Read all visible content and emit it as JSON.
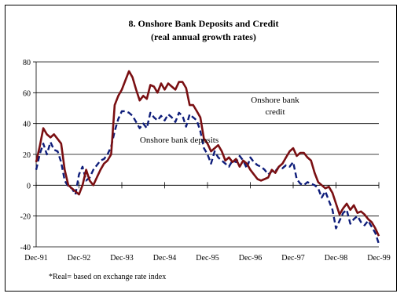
{
  "chart_data": {
    "type": "line",
    "title": "8.  Onshore Bank Deposits and Credit",
    "subtitle": "(real annual growth rates)",
    "footnote": "*Real= based on exchange rate index",
    "xlabel": "",
    "ylabel": "",
    "ylim": [
      -40,
      80
    ],
    "yticks": [
      -40,
      -20,
      0,
      20,
      40,
      60,
      80
    ],
    "xlim": [
      "1991-12",
      "1999-12"
    ],
    "xticks": [
      "Dec-91",
      "Dec-92",
      "Dec-93",
      "Dec-94",
      "Dec-95",
      "Dec-96",
      "Dec-97",
      "Dec-98",
      "Dec-99"
    ],
    "grid": "horizontal",
    "legend": "none",
    "annotations": [
      {
        "series": "credit",
        "lines": [
          "Onshore bank",
          "credit"
        ]
      },
      {
        "series": "deposits",
        "lines": [
          "Onshore bank deposits"
        ]
      }
    ],
    "series": [
      {
        "key": "credit",
        "color": "#7a0f12",
        "style": "solid",
        "points": [
          [
            "1991-12",
            15
          ],
          [
            "1992-01",
            25
          ],
          [
            "1992-02",
            37
          ],
          [
            "1992-03",
            33
          ],
          [
            "1992-04",
            31
          ],
          [
            "1992-05",
            33
          ],
          [
            "1992-06",
            30
          ],
          [
            "1992-07",
            27
          ],
          [
            "1992-08",
            10
          ],
          [
            "1992-09",
            0
          ],
          [
            "1992-10",
            -2
          ],
          [
            "1992-11",
            -4
          ],
          [
            "1992-12",
            -6
          ],
          [
            "1993-01",
            0
          ],
          [
            "1993-02",
            10
          ],
          [
            "1993-03",
            3
          ],
          [
            "1993-04",
            0
          ],
          [
            "1993-05",
            5
          ],
          [
            "1993-06",
            10
          ],
          [
            "1993-07",
            14
          ],
          [
            "1993-08",
            16
          ],
          [
            "1993-09",
            20
          ],
          [
            "1993-10",
            52
          ],
          [
            "1993-11",
            58
          ],
          [
            "1993-12",
            62
          ],
          [
            "1994-01",
            68
          ],
          [
            "1994-02",
            74
          ],
          [
            "1994-03",
            70
          ],
          [
            "1994-04",
            62
          ],
          [
            "1994-05",
            55
          ],
          [
            "1994-06",
            58
          ],
          [
            "1994-07",
            56
          ],
          [
            "1994-08",
            65
          ],
          [
            "1994-09",
            64
          ],
          [
            "1994-10",
            60
          ],
          [
            "1994-11",
            66
          ],
          [
            "1994-12",
            62
          ],
          [
            "1995-01",
            66
          ],
          [
            "1995-02",
            64
          ],
          [
            "1995-03",
            62
          ],
          [
            "1995-04",
            67
          ],
          [
            "1995-05",
            67
          ],
          [
            "1995-06",
            63
          ],
          [
            "1995-07",
            52
          ],
          [
            "1995-08",
            52
          ],
          [
            "1995-09",
            48
          ],
          [
            "1995-10",
            44
          ],
          [
            "1995-11",
            30
          ],
          [
            "1995-12",
            27
          ],
          [
            "1996-01",
            22
          ],
          [
            "1996-02",
            24
          ],
          [
            "1996-03",
            26
          ],
          [
            "1996-04",
            22
          ],
          [
            "1996-05",
            16
          ],
          [
            "1996-06",
            18
          ],
          [
            "1996-07",
            15
          ],
          [
            "1996-08",
            17
          ],
          [
            "1996-09",
            12
          ],
          [
            "1996-10",
            16
          ],
          [
            "1996-11",
            14
          ],
          [
            "1996-12",
            10
          ],
          [
            "1997-01",
            7
          ],
          [
            "1997-02",
            4
          ],
          [
            "1997-03",
            3
          ],
          [
            "1997-04",
            4
          ],
          [
            "1997-05",
            5
          ],
          [
            "1997-06",
            10
          ],
          [
            "1997-07",
            8
          ],
          [
            "1997-08",
            12
          ],
          [
            "1997-09",
            14
          ],
          [
            "1997-10",
            18
          ],
          [
            "1997-11",
            22
          ],
          [
            "1997-12",
            24
          ],
          [
            "1998-01",
            19
          ],
          [
            "1998-02",
            21
          ],
          [
            "1998-03",
            21
          ],
          [
            "1998-04",
            18
          ],
          [
            "1998-05",
            16
          ],
          [
            "1998-06",
            8
          ],
          [
            "1998-07",
            2
          ],
          [
            "1998-08",
            0
          ],
          [
            "1998-09",
            -2
          ],
          [
            "1998-10",
            -1
          ],
          [
            "1998-11",
            -5
          ],
          [
            "1998-12",
            -12
          ],
          [
            "1999-01",
            -19
          ],
          [
            "1999-02",
            -15
          ],
          [
            "1999-03",
            -12
          ],
          [
            "1999-04",
            -16
          ],
          [
            "1999-05",
            -13
          ],
          [
            "1999-06",
            -18
          ],
          [
            "1999-07",
            -17
          ],
          [
            "1999-08",
            -19
          ],
          [
            "1999-09",
            -22
          ],
          [
            "1999-10",
            -24
          ],
          [
            "1999-11",
            -28
          ],
          [
            "1999-12",
            -33
          ]
        ]
      },
      {
        "key": "deposits",
        "color": "#0e1d7a",
        "style": "dashed",
        "points": [
          [
            "1991-12",
            10
          ],
          [
            "1992-01",
            20
          ],
          [
            "1992-02",
            27
          ],
          [
            "1992-03",
            20
          ],
          [
            "1992-04",
            28
          ],
          [
            "1992-05",
            23
          ],
          [
            "1992-06",
            22
          ],
          [
            "1992-07",
            15
          ],
          [
            "1992-08",
            3
          ],
          [
            "1992-09",
            -1
          ],
          [
            "1992-10",
            -2
          ],
          [
            "1992-11",
            -6
          ],
          [
            "1992-12",
            7
          ],
          [
            "1993-01",
            12
          ],
          [
            "1993-02",
            3
          ],
          [
            "1993-03",
            5
          ],
          [
            "1993-04",
            10
          ],
          [
            "1993-05",
            13
          ],
          [
            "1993-06",
            16
          ],
          [
            "1993-07",
            17
          ],
          [
            "1993-08",
            20
          ],
          [
            "1993-09",
            25
          ],
          [
            "1993-10",
            35
          ],
          [
            "1993-11",
            43
          ],
          [
            "1993-12",
            48
          ],
          [
            "1994-01",
            48
          ],
          [
            "1994-02",
            47
          ],
          [
            "1994-03",
            45
          ],
          [
            "1994-04",
            41
          ],
          [
            "1994-05",
            37
          ],
          [
            "1994-06",
            40
          ],
          [
            "1994-07",
            37
          ],
          [
            "1994-08",
            47
          ],
          [
            "1994-09",
            44
          ],
          [
            "1994-10",
            42
          ],
          [
            "1994-11",
            45
          ],
          [
            "1994-12",
            42
          ],
          [
            "1995-01",
            46
          ],
          [
            "1995-02",
            44
          ],
          [
            "1995-03",
            41
          ],
          [
            "1995-04",
            47
          ],
          [
            "1995-05",
            45
          ],
          [
            "1995-06",
            38
          ],
          [
            "1995-07",
            46
          ],
          [
            "1995-08",
            44
          ],
          [
            "1995-09",
            42
          ],
          [
            "1995-10",
            35
          ],
          [
            "1995-11",
            24
          ],
          [
            "1995-12",
            20
          ],
          [
            "1996-01",
            14
          ],
          [
            "1996-02",
            22
          ],
          [
            "1996-03",
            18
          ],
          [
            "1996-04",
            16
          ],
          [
            "1996-05",
            14
          ],
          [
            "1996-06",
            12
          ],
          [
            "1996-07",
            16
          ],
          [
            "1996-08",
            15
          ],
          [
            "1996-09",
            19
          ],
          [
            "1996-10",
            16
          ],
          [
            "1996-11",
            11
          ],
          [
            "1996-12",
            18
          ],
          [
            "1997-01",
            15
          ],
          [
            "1997-02",
            13
          ],
          [
            "1997-03",
            12
          ],
          [
            "1997-04",
            10
          ],
          [
            "1997-05",
            7
          ],
          [
            "1997-06",
            9
          ],
          [
            "1997-07",
            9
          ],
          [
            "1997-08",
            12
          ],
          [
            "1997-09",
            11
          ],
          [
            "1997-10",
            13
          ],
          [
            "1997-11",
            12
          ],
          [
            "1997-12",
            15
          ],
          [
            "1998-01",
            4
          ],
          [
            "1998-02",
            1
          ],
          [
            "1998-03",
            0
          ],
          [
            "1998-04",
            2
          ],
          [
            "1998-05",
            1
          ],
          [
            "1998-06",
            0
          ],
          [
            "1998-07",
            -2
          ],
          [
            "1998-08",
            -8
          ],
          [
            "1998-09",
            -4
          ],
          [
            "1998-10",
            -10
          ],
          [
            "1998-11",
            -16
          ],
          [
            "1998-12",
            -28
          ],
          [
            "1999-01",
            -23
          ],
          [
            "1999-02",
            -18
          ],
          [
            "1999-03",
            -16
          ],
          [
            "1999-04",
            -25
          ],
          [
            "1999-05",
            -22
          ],
          [
            "1999-06",
            -20
          ],
          [
            "1999-07",
            -24
          ],
          [
            "1999-08",
            -26
          ],
          [
            "1999-09",
            -23
          ],
          [
            "1999-10",
            -27
          ],
          [
            "1999-11",
            -31
          ],
          [
            "1999-12",
            -38
          ]
        ]
      }
    ]
  }
}
